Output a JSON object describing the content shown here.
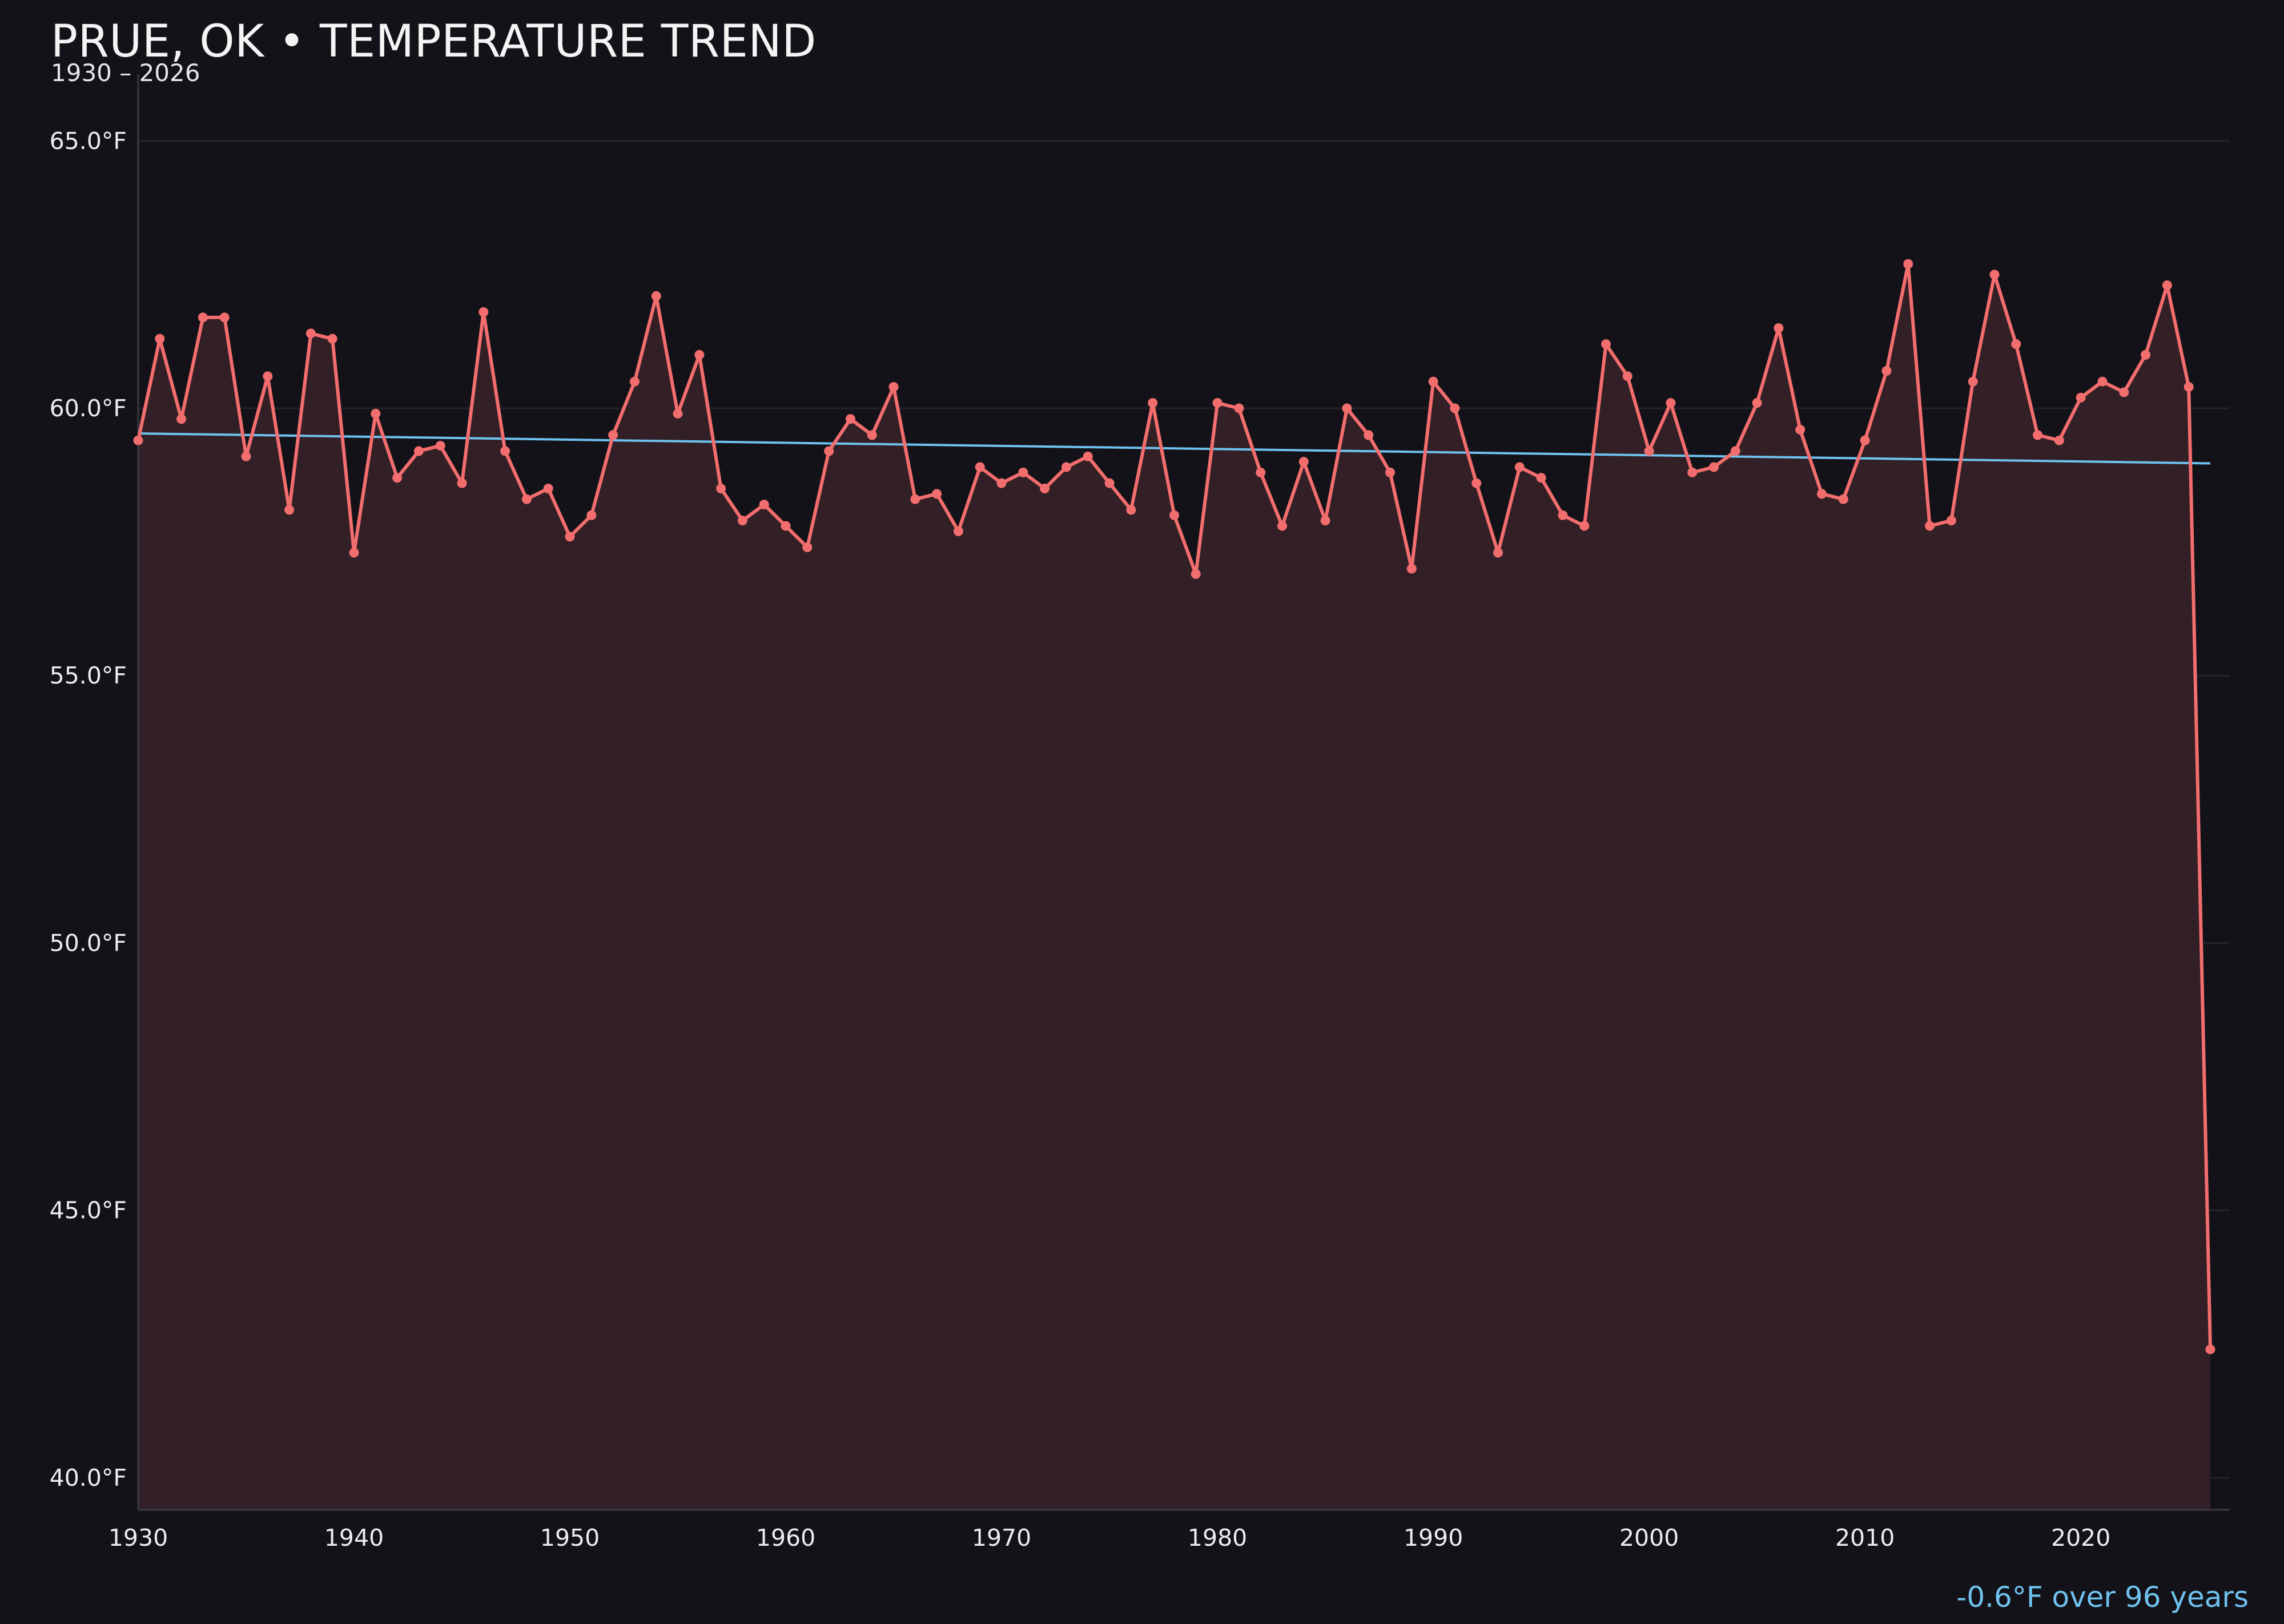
{
  "header": {
    "title": "PRUE, OK • TEMPERATURE TREND",
    "subtitle": "1930 – 2026"
  },
  "footer": {
    "trend_note": "-0.6°F over 96 years"
  },
  "colors": {
    "background": "#131218",
    "series_line": "#f26d6d",
    "series_fill": "#331f26",
    "trend_line": "#6fc2ef",
    "grid": "#26222a",
    "axis": "#3a3a40"
  },
  "chart_data": {
    "type": "line",
    "title": "PRUE, OK • TEMPERATURE TREND",
    "subtitle": "1930 – 2026",
    "xlabel": "",
    "ylabel": "",
    "xlim": [
      1930,
      2026.9
    ],
    "ylim": [
      39.4,
      65.5
    ],
    "x_ticks": [
      1930,
      1940,
      1950,
      1960,
      1970,
      1980,
      1990,
      2000,
      2010,
      2020
    ],
    "y_ticks": [
      40,
      45,
      50,
      55,
      60,
      65
    ],
    "y_tick_labels": [
      "40.0°F",
      "45.0°F",
      "50.0°F",
      "55.0°F",
      "60.0°F",
      "65.0°F"
    ],
    "grid": true,
    "area_fill": true,
    "x": [
      1930,
      1931,
      1932,
      1933,
      1934,
      1935,
      1936,
      1937,
      1938,
      1939,
      1940,
      1941,
      1942,
      1943,
      1944,
      1945,
      1946,
      1947,
      1948,
      1949,
      1950,
      1951,
      1952,
      1953,
      1954,
      1955,
      1956,
      1957,
      1958,
      1959,
      1960,
      1961,
      1962,
      1963,
      1964,
      1965,
      1966,
      1967,
      1968,
      1969,
      1970,
      1971,
      1972,
      1973,
      1974,
      1975,
      1976,
      1977,
      1978,
      1979,
      1980,
      1981,
      1982,
      1983,
      1984,
      1985,
      1986,
      1987,
      1988,
      1989,
      1990,
      1991,
      1992,
      1993,
      1994,
      1995,
      1996,
      1997,
      1998,
      1999,
      2000,
      2001,
      2002,
      2003,
      2004,
      2005,
      2006,
      2007,
      2008,
      2009,
      2010,
      2011,
      2012,
      2013,
      2014,
      2015,
      2016,
      2017,
      2018,
      2019,
      2020,
      2021,
      2022,
      2023,
      2024,
      2025,
      2026
    ],
    "series": [
      {
        "name": "",
        "values": [
          59.4,
          61.3,
          59.8,
          61.7,
          61.7,
          59.1,
          60.6,
          58.1,
          61.4,
          61.3,
          57.3,
          59.9,
          58.7,
          59.2,
          59.3,
          58.6,
          61.8,
          59.2,
          58.3,
          58.5,
          57.6,
          58.0,
          59.5,
          60.5,
          62.1,
          59.9,
          61.0,
          58.5,
          57.9,
          58.2,
          57.8,
          57.4,
          59.2,
          59.8,
          59.5,
          60.4,
          58.3,
          58.4,
          57.7,
          58.9,
          58.6,
          58.8,
          58.5,
          58.9,
          59.1,
          58.6,
          58.1,
          60.1,
          58.0,
          56.9,
          60.1,
          60.0,
          58.8,
          57.8,
          59.0,
          57.9,
          60.0,
          59.5,
          58.8,
          57.0,
          60.5,
          60.0,
          58.6,
          57.3,
          58.9,
          58.7,
          58.0,
          57.8,
          61.2,
          60.6,
          59.2,
          60.1,
          58.8,
          58.9,
          59.2,
          60.1,
          61.5,
          59.6,
          58.4,
          58.3,
          59.4,
          60.7,
          62.7,
          57.8,
          57.9,
          60.5,
          62.5,
          61.2,
          59.5,
          59.4,
          60.2,
          60.5,
          60.3,
          61.0,
          62.3,
          60.4,
          42.4
        ]
      }
    ],
    "trend": {
      "x": [
        1930,
        2026
      ],
      "y": [
        59.53,
        58.97
      ],
      "label": "-0.6°F over 96 years"
    }
  }
}
